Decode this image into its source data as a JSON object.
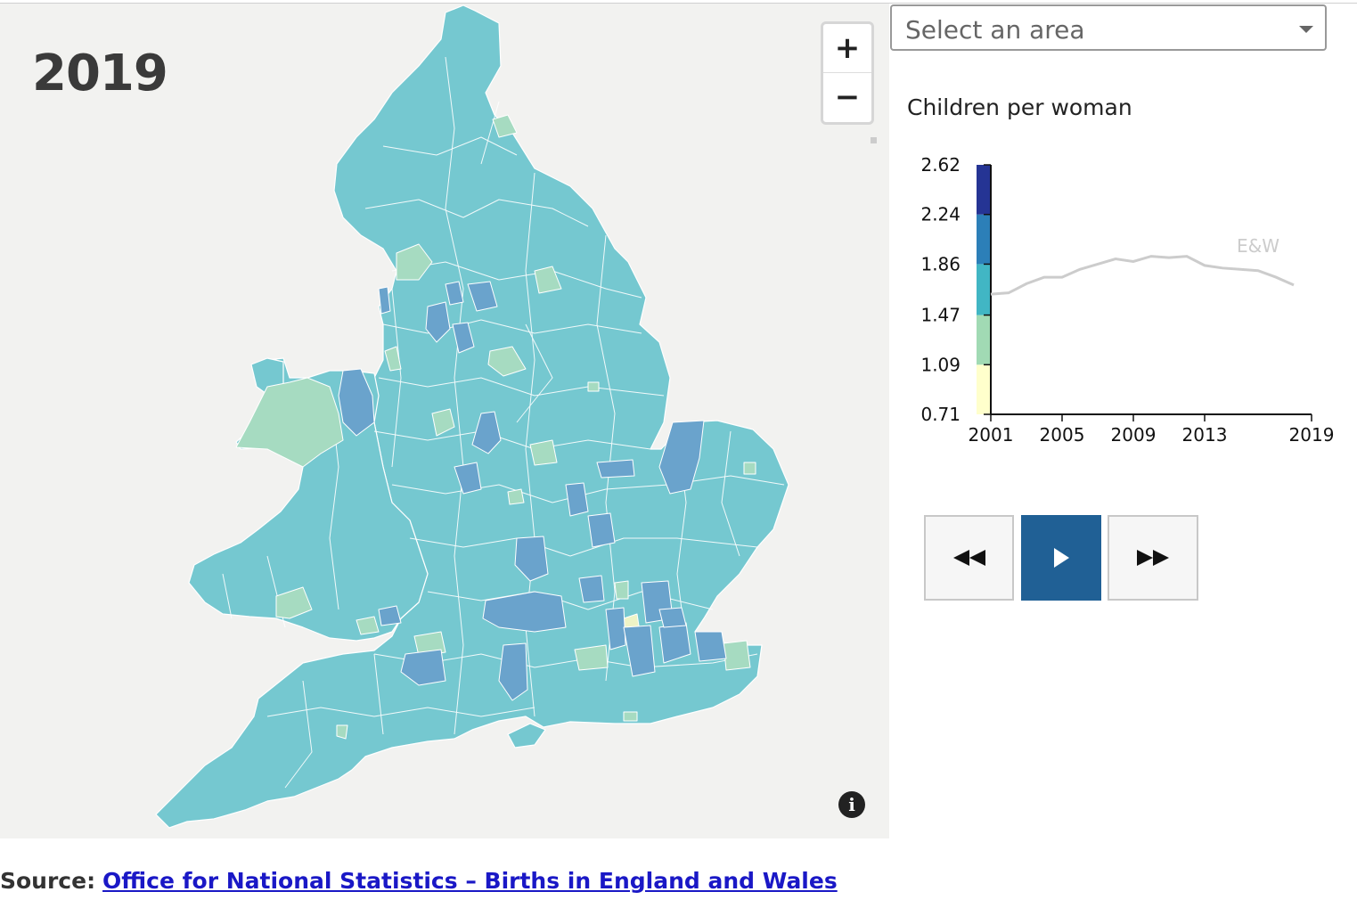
{
  "year": "2019",
  "zoom": {
    "in_label": "+",
    "out_label": "−"
  },
  "select": {
    "placeholder": "Select an area"
  },
  "chart_data": {
    "type": "line",
    "title": "Children per woman",
    "y_ticks": [
      "2.62",
      "2.24",
      "1.86",
      "1.47",
      "1.09",
      "0.71"
    ],
    "ylim": [
      0.71,
      2.62
    ],
    "x_ticks": [
      "2001",
      "2005",
      "2009",
      "2013",
      "2019"
    ],
    "xlim": [
      2001,
      2019
    ],
    "legend_bands": [
      {
        "from": 0.71,
        "to": 1.09,
        "color": "#ffffcc"
      },
      {
        "from": 1.09,
        "to": 1.47,
        "color": "#a1dab4"
      },
      {
        "from": 1.47,
        "to": 1.86,
        "color": "#41b6c4"
      },
      {
        "from": 1.86,
        "to": 2.24,
        "color": "#2c7fb8"
      },
      {
        "from": 2.24,
        "to": 2.62,
        "color": "#253494"
      }
    ],
    "series": [
      {
        "name": "E&W",
        "color": "#cccccc",
        "x": [
          2001,
          2002,
          2003,
          2004,
          2005,
          2006,
          2007,
          2008,
          2009,
          2010,
          2011,
          2012,
          2013,
          2014,
          2015,
          2016,
          2017,
          2018
        ],
        "y": [
          1.63,
          1.64,
          1.71,
          1.76,
          1.76,
          1.82,
          1.86,
          1.9,
          1.88,
          1.92,
          1.91,
          1.92,
          1.85,
          1.83,
          1.82,
          1.81,
          1.76,
          1.7
        ]
      }
    ]
  },
  "map": {
    "fills": {
      "land": "#75c8d0",
      "border": "#ffffff",
      "light": "#a6dbc1",
      "mid": "#6aa3cc",
      "dark": "#5a89c8",
      "sea": "#f2f2f0"
    }
  },
  "controls": {
    "rewind_icon": "rewind-icon",
    "play_icon": "play-icon",
    "forward_icon": "fast-forward-icon",
    "accent": "#206095"
  },
  "info_glyph": "i",
  "source": {
    "label": "Source:",
    "link_text": "Office for National Statistics – Births in England and Wales"
  }
}
